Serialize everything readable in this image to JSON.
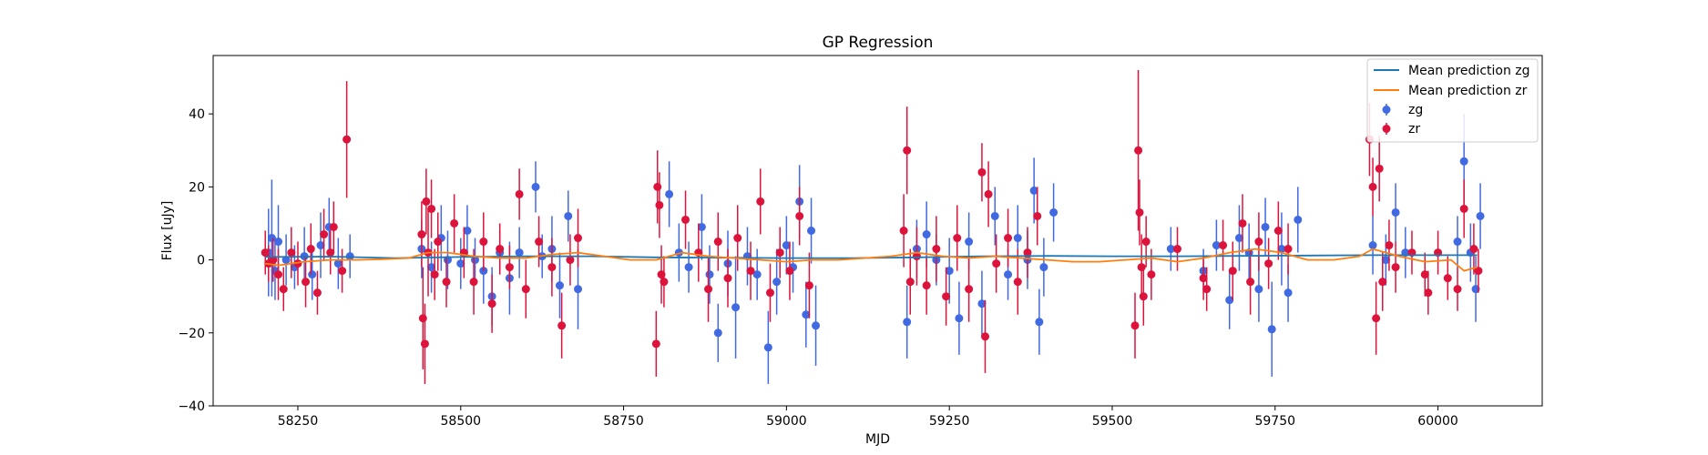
{
  "chart_data": {
    "type": "scatter",
    "title": "GP Regression",
    "xlabel": "MJD",
    "ylabel": "Flux [uJy]",
    "xlim": [
      58120,
      60160
    ],
    "ylim": [
      -40,
      56
    ],
    "xticks": [
      58250,
      58500,
      58750,
      59000,
      59250,
      59500,
      59750,
      60000
    ],
    "yticks": [
      -40,
      -20,
      0,
      20,
      40
    ],
    "grid": false,
    "legend_position": "top-right",
    "series": [
      {
        "name": "Mean prediction zg",
        "kind": "line",
        "color": "#1f77b4",
        "x": [
          58200,
          58300,
          58400,
          58500,
          58600,
          58700,
          58800,
          58900,
          59000,
          59100,
          59200,
          59300,
          59400,
          59500,
          59600,
          59700,
          59800,
          59900,
          60000,
          60060
        ],
        "y": [
          0.8,
          0.9,
          0.5,
          0.8,
          1.0,
          1.0,
          0.7,
          0.6,
          0.5,
          0.5,
          0.7,
          1.0,
          1.1,
          1.0,
          1.0,
          1.1,
          1.2,
          1.3,
          1.3,
          1.3
        ]
      },
      {
        "name": "Mean prediction zr",
        "kind": "line",
        "color": "#ff7f0e",
        "x": [
          58200,
          58220,
          58260,
          58300,
          58340,
          58380,
          58420,
          58450,
          58480,
          58520,
          58560,
          58600,
          58640,
          58680,
          58720,
          58760,
          58800,
          58840,
          58880,
          58920,
          58960,
          59000,
          59040,
          59080,
          59120,
          59160,
          59200,
          59240,
          59280,
          59320,
          59360,
          59400,
          59440,
          59480,
          59520,
          59560,
          59600,
          59640,
          59680,
          59720,
          59760,
          59800,
          59840,
          59880,
          59900,
          59940,
          59980,
          60020,
          60040,
          60060
        ],
        "y": [
          -1.0,
          -1.5,
          -0.5,
          0.0,
          0.0,
          0.2,
          0.5,
          2.0,
          2.0,
          1.0,
          0.5,
          0.5,
          1.5,
          2.0,
          1.0,
          0.0,
          0.0,
          2.0,
          1.0,
          0.5,
          0.0,
          -0.5,
          0.0,
          0.0,
          0.5,
          1.0,
          2.0,
          1.0,
          0.5,
          1.0,
          0.5,
          0.0,
          -0.5,
          -0.5,
          0.0,
          0.5,
          -0.5,
          0.5,
          2.0,
          3.0,
          2.0,
          0.0,
          0.0,
          1.0,
          3.0,
          1.0,
          -0.5,
          0.0,
          -3.0,
          -2.0
        ]
      },
      {
        "name": "zg",
        "kind": "errorbar",
        "color": "#4169e1",
        "points": [
          [
            58205,
            2,
            12
          ],
          [
            58210,
            6,
            16
          ],
          [
            58215,
            -3,
            8
          ],
          [
            58220,
            5,
            10
          ],
          [
            58232,
            0,
            7
          ],
          [
            58245,
            -2,
            6
          ],
          [
            58260,
            1,
            8
          ],
          [
            58272,
            -4,
            7
          ],
          [
            58285,
            4,
            9
          ],
          [
            58298,
            9,
            8
          ],
          [
            58312,
            -1,
            7
          ],
          [
            58330,
            1,
            6
          ],
          [
            58440,
            3,
            8
          ],
          [
            58455,
            -2,
            7
          ],
          [
            58470,
            6,
            9
          ],
          [
            58480,
            0,
            8
          ],
          [
            58500,
            -1,
            7
          ],
          [
            58510,
            8,
            7
          ],
          [
            58522,
            0,
            6
          ],
          [
            58535,
            -3,
            9
          ],
          [
            58548,
            -10,
            8
          ],
          [
            58560,
            2,
            6
          ],
          [
            58575,
            -5,
            10
          ],
          [
            58590,
            2,
            7
          ],
          [
            58615,
            20,
            7
          ],
          [
            58625,
            1,
            6
          ],
          [
            58640,
            3,
            9
          ],
          [
            58652,
            -7,
            9
          ],
          [
            58665,
            12,
            7
          ],
          [
            58680,
            -8,
            11
          ],
          [
            58820,
            18,
            9
          ],
          [
            58835,
            2,
            8
          ],
          [
            58850,
            -2,
            7
          ],
          [
            58870,
            9,
            9
          ],
          [
            58882,
            -4,
            8
          ],
          [
            58895,
            -20,
            8
          ],
          [
            58910,
            -1,
            9
          ],
          [
            58922,
            -13,
            14
          ],
          [
            58940,
            1,
            8
          ],
          [
            58955,
            -4,
            7
          ],
          [
            58972,
            -24,
            10
          ],
          [
            58985,
            -6,
            9
          ],
          [
            59000,
            4,
            8
          ],
          [
            59010,
            -2,
            7
          ],
          [
            59020,
            16,
            10
          ],
          [
            59030,
            -15,
            9
          ],
          [
            59038,
            8,
            9
          ],
          [
            59045,
            -18,
            11
          ],
          [
            59185,
            -17,
            10
          ],
          [
            59200,
            3,
            8
          ],
          [
            59215,
            7,
            9
          ],
          [
            59230,
            0,
            7
          ],
          [
            59250,
            -3,
            9
          ],
          [
            59265,
            -16,
            10
          ],
          [
            59280,
            5,
            8
          ],
          [
            59300,
            -12,
            9
          ],
          [
            59320,
            12,
            8
          ],
          [
            59340,
            -4,
            7
          ],
          [
            59355,
            6,
            9
          ],
          [
            59370,
            0,
            8
          ],
          [
            59380,
            19,
            9
          ],
          [
            59388,
            -17,
            9
          ],
          [
            59395,
            -2,
            8
          ],
          [
            59410,
            13,
            8
          ],
          [
            59590,
            3,
            6
          ],
          [
            59640,
            -3,
            6
          ],
          [
            59660,
            4,
            7
          ],
          [
            59680,
            -11,
            8
          ],
          [
            59695,
            6,
            9
          ],
          [
            59710,
            2,
            8
          ],
          [
            59725,
            -8,
            9
          ],
          [
            59735,
            9,
            8
          ],
          [
            59745,
            -19,
            13
          ],
          [
            59760,
            3,
            10
          ],
          [
            59770,
            -9,
            8
          ],
          [
            59785,
            11,
            9
          ],
          [
            59900,
            4,
            8
          ],
          [
            59920,
            0,
            7
          ],
          [
            59935,
            13,
            8
          ],
          [
            59950,
            2,
            7
          ],
          [
            60030,
            5,
            7
          ],
          [
            60040,
            27,
            13
          ],
          [
            60050,
            2,
            8
          ],
          [
            60058,
            -8,
            9
          ],
          [
            60065,
            12,
            9
          ]
        ]
      },
      {
        "name": "zr",
        "kind": "errorbar",
        "color": "#dc143c",
        "points": [
          [
            58200,
            2,
            6
          ],
          [
            58205,
            -1,
            5
          ],
          [
            58212,
            0,
            6
          ],
          [
            58220,
            -4,
            7
          ],
          [
            58228,
            -8,
            6
          ],
          [
            58240,
            2,
            7
          ],
          [
            58250,
            -1,
            6
          ],
          [
            58262,
            -6,
            7
          ],
          [
            58270,
            3,
            7
          ],
          [
            58280,
            -9,
            6
          ],
          [
            58290,
            7,
            7
          ],
          [
            58300,
            2,
            6
          ],
          [
            58305,
            9,
            7
          ],
          [
            58318,
            -3,
            6
          ],
          [
            58325,
            33,
            16
          ],
          [
            58440,
            7,
            9
          ],
          [
            58442,
            -16,
            14
          ],
          [
            58445,
            -23,
            11
          ],
          [
            58447,
            16,
            9
          ],
          [
            58450,
            2,
            12
          ],
          [
            58455,
            14,
            8
          ],
          [
            58460,
            -4,
            7
          ],
          [
            58465,
            5,
            8
          ],
          [
            58478,
            -6,
            7
          ],
          [
            58490,
            10,
            8
          ],
          [
            58505,
            2,
            7
          ],
          [
            58520,
            -6,
            9
          ],
          [
            58535,
            5,
            8
          ],
          [
            58548,
            -12,
            8
          ],
          [
            58560,
            3,
            7
          ],
          [
            58575,
            -2,
            6
          ],
          [
            58590,
            18,
            7
          ],
          [
            58600,
            -8,
            8
          ],
          [
            58620,
            5,
            7
          ],
          [
            58640,
            -2,
            8
          ],
          [
            58655,
            -18,
            9
          ],
          [
            58668,
            0,
            7
          ],
          [
            58680,
            6,
            8
          ],
          [
            58800,
            -23,
            9
          ],
          [
            58802,
            20,
            10
          ],
          [
            58805,
            15,
            9
          ],
          [
            58808,
            -4,
            8
          ],
          [
            58812,
            -6,
            7
          ],
          [
            58845,
            11,
            8
          ],
          [
            58865,
            2,
            8
          ],
          [
            58880,
            -8,
            9
          ],
          [
            58895,
            5,
            8
          ],
          [
            58910,
            -5,
            8
          ],
          [
            58925,
            6,
            9
          ],
          [
            58945,
            -3,
            8
          ],
          [
            58960,
            16,
            9
          ],
          [
            58975,
            -9,
            8
          ],
          [
            58990,
            2,
            7
          ],
          [
            59005,
            -3,
            8
          ],
          [
            59020,
            12,
            8
          ],
          [
            59035,
            -7,
            9
          ],
          [
            59180,
            8,
            10
          ],
          [
            59185,
            30,
            12
          ],
          [
            59190,
            -6,
            9
          ],
          [
            59200,
            1,
            8
          ],
          [
            59215,
            -7,
            8
          ],
          [
            59230,
            3,
            9
          ],
          [
            59245,
            -10,
            8
          ],
          [
            59262,
            6,
            9
          ],
          [
            59280,
            -8,
            9
          ],
          [
            59300,
            24,
            8
          ],
          [
            59305,
            -21,
            10
          ],
          [
            59310,
            18,
            9
          ],
          [
            59322,
            -1,
            8
          ],
          [
            59340,
            6,
            8
          ],
          [
            59355,
            -6,
            9
          ],
          [
            59370,
            2,
            7
          ],
          [
            59385,
            12,
            8
          ],
          [
            59535,
            -18,
            9
          ],
          [
            59540,
            30,
            22
          ],
          [
            59542,
            13,
            9
          ],
          [
            59545,
            -2,
            9
          ],
          [
            59548,
            -10,
            8
          ],
          [
            59552,
            5,
            7
          ],
          [
            59560,
            -4,
            7
          ],
          [
            59600,
            3,
            6
          ],
          [
            59640,
            -5,
            6
          ],
          [
            59645,
            -8,
            6
          ],
          [
            59670,
            4,
            7
          ],
          [
            59685,
            -3,
            8
          ],
          [
            59700,
            10,
            8
          ],
          [
            59712,
            -6,
            9
          ],
          [
            59725,
            5,
            8
          ],
          [
            59740,
            -1,
            7
          ],
          [
            59755,
            8,
            8
          ],
          [
            59770,
            3,
            7
          ],
          [
            59895,
            33,
            10
          ],
          [
            59900,
            20,
            8
          ],
          [
            59905,
            -16,
            10
          ],
          [
            59910,
            25,
            9
          ],
          [
            59915,
            -6,
            8
          ],
          [
            59925,
            4,
            7
          ],
          [
            59935,
            -2,
            7
          ],
          [
            59960,
            2,
            6
          ],
          [
            59980,
            -4,
            6
          ],
          [
            59985,
            -9,
            6
          ],
          [
            60000,
            2,
            6
          ],
          [
            60015,
            -5,
            6
          ],
          [
            60030,
            -8,
            6
          ],
          [
            60040,
            14,
            8
          ],
          [
            60055,
            3,
            7
          ],
          [
            60062,
            -3,
            6
          ]
        ]
      }
    ]
  }
}
